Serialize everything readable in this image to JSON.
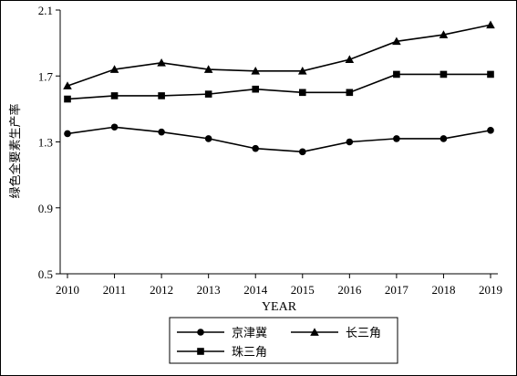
{
  "chart_data": {
    "type": "line",
    "xlabel": "YEAR",
    "ylabel": "绿色全要素生产率",
    "ylim": [
      0.5,
      2.1
    ],
    "yticks": [
      0.5,
      0.9,
      1.3,
      1.7,
      2.1
    ],
    "x": [
      2010,
      2011,
      2012,
      2013,
      2014,
      2015,
      2016,
      2017,
      2018,
      2019
    ],
    "grid": false,
    "legend": "bottom",
    "series": [
      {
        "name": "京津冀",
        "marker": "circle",
        "values": [
          1.35,
          1.39,
          1.36,
          1.32,
          1.26,
          1.24,
          1.3,
          1.32,
          1.32,
          1.37
        ]
      },
      {
        "name": "长三角",
        "marker": "triangle",
        "values": [
          1.64,
          1.74,
          1.78,
          1.74,
          1.73,
          1.73,
          1.8,
          1.91,
          1.95,
          2.01
        ]
      },
      {
        "name": "珠三角",
        "marker": "square",
        "values": [
          1.56,
          1.58,
          1.58,
          1.59,
          1.62,
          1.6,
          1.6,
          1.71,
          1.71,
          1.71
        ]
      }
    ]
  }
}
